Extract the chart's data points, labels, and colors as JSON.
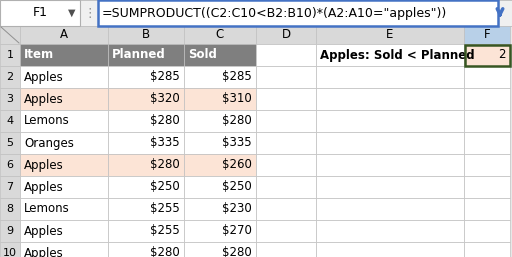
{
  "formula_bar_cell": "F1",
  "formula_bar_text": "=SUMPRODUCT((C2:C10<B2:B10)*(A2:A10=\"apples\"))",
  "col_headers": [
    "A",
    "B",
    "C",
    "D",
    "E",
    "F"
  ],
  "header_row": [
    "Item",
    "Planned",
    "Sold",
    "",
    "Apples: Sold < Planned",
    ""
  ],
  "data_rows": [
    [
      "Apples",
      "$285",
      "$285",
      "",
      "",
      ""
    ],
    [
      "Apples",
      "$320",
      "$310",
      "",
      "",
      ""
    ],
    [
      "Lemons",
      "$280",
      "$280",
      "",
      "",
      ""
    ],
    [
      "Oranges",
      "$335",
      "$335",
      "",
      "",
      ""
    ],
    [
      "Apples",
      "$280",
      "$260",
      "",
      "",
      ""
    ],
    [
      "Apples",
      "$250",
      "$250",
      "",
      "",
      ""
    ],
    [
      "Lemons",
      "$255",
      "$230",
      "",
      "",
      ""
    ],
    [
      "Apples",
      "$255",
      "$270",
      "",
      "",
      ""
    ],
    [
      "Apples",
      "$280",
      "$280",
      "",
      "",
      ""
    ]
  ],
  "result_value": "2",
  "highlighted_rows": [
    1,
    4
  ],
  "highlight_color": "#fce4d6",
  "header_bg": "#7f7f7f",
  "header_fg": "#ffffff",
  "col_header_bg": "#d9d9d9",
  "grid_color": "#c0c0c0",
  "formula_bar_border": "#4472c4",
  "result_cell_bg": "#fce4d6",
  "result_cell_border": "#375623",
  "formula_bar_bg": "#ffffff",
  "row_header_bg": "#d9d9d9",
  "row_header_fg": "#000000",
  "white_bg": "#ffffff",
  "light_bg": "#f2f2f2",
  "col_F_header_bg": "#b8d0e8"
}
